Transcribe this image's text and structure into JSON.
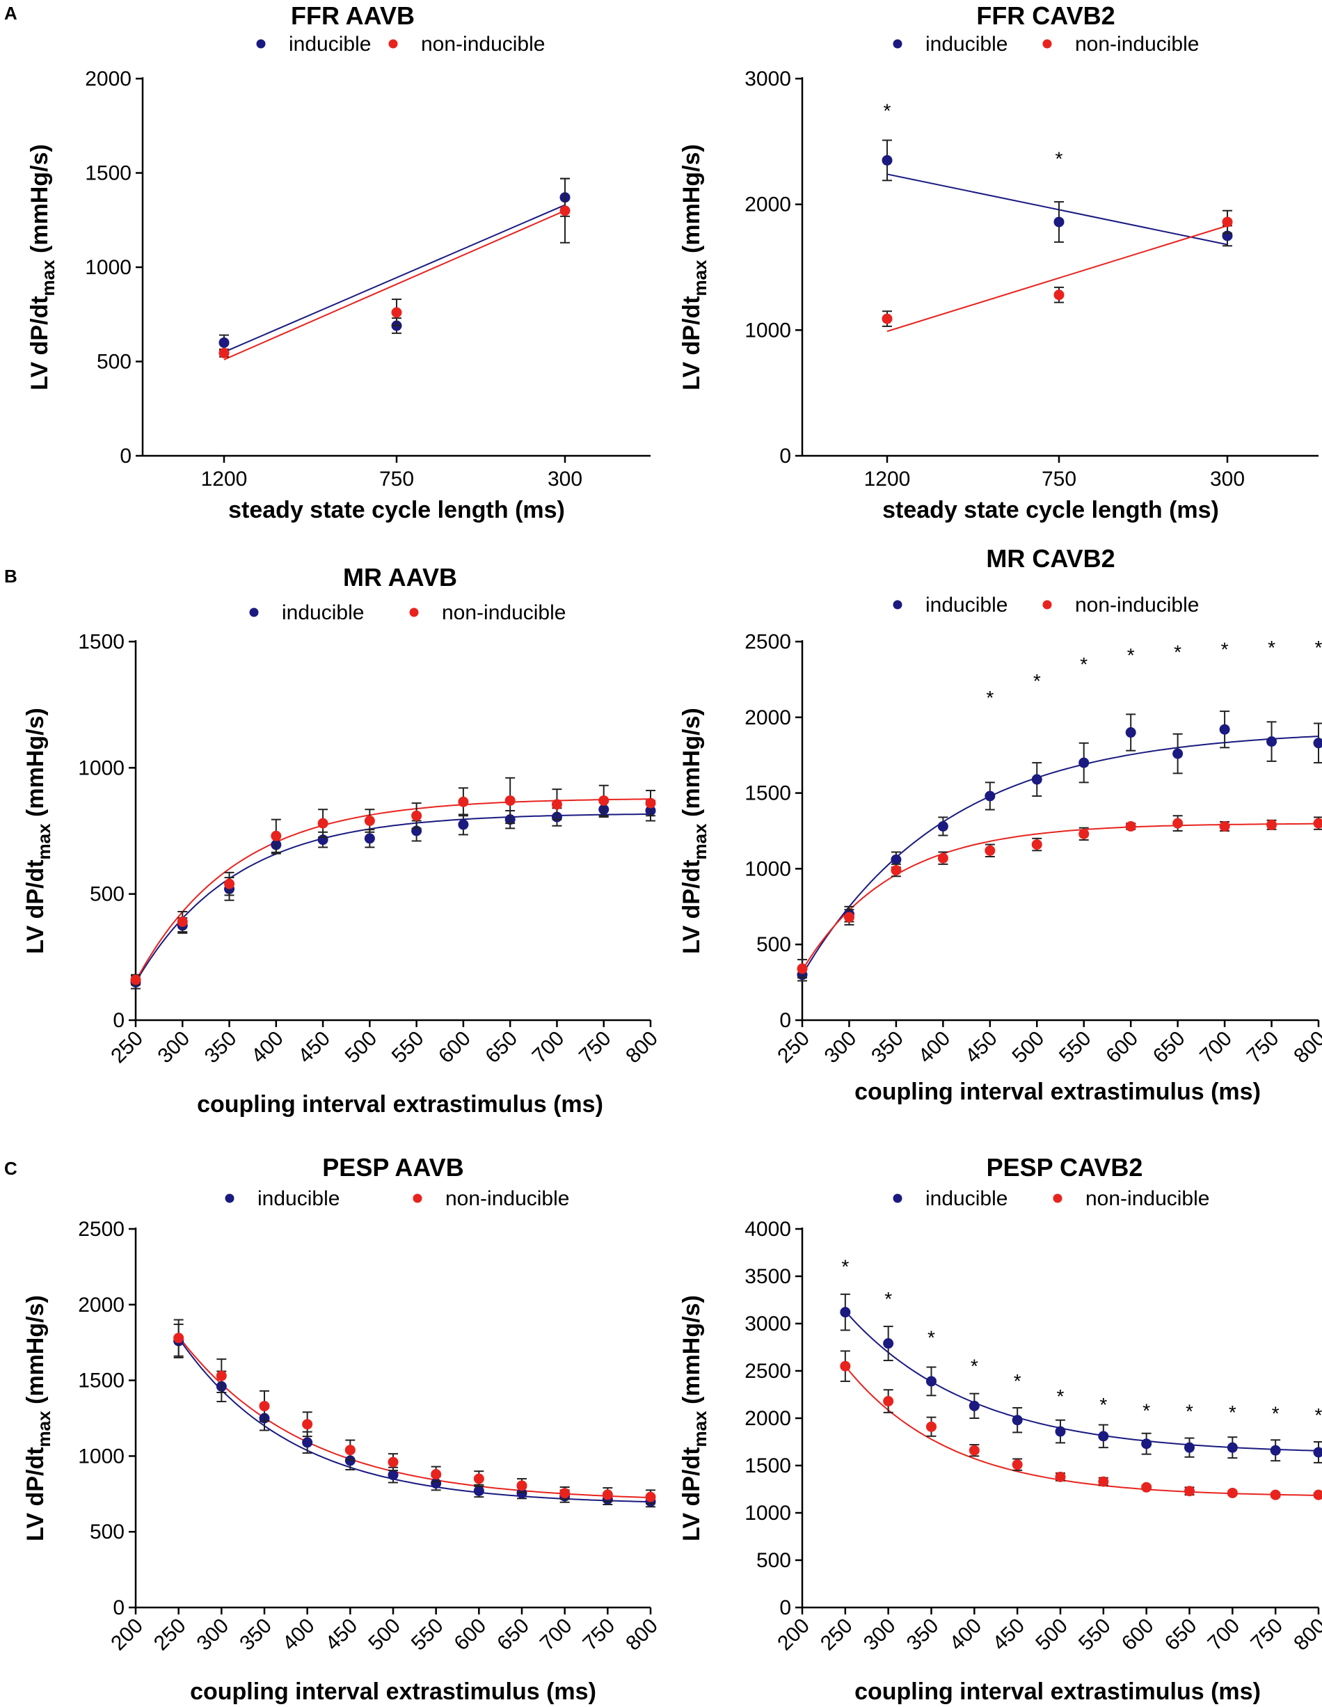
{
  "panel_letters": [
    "A",
    "B",
    "C"
  ],
  "chart_data": [
    {
      "type": "scatter",
      "panel": "A",
      "title": "FFR AAVB",
      "xlabel": "steady state cycle length (ms)",
      "ylabel_main": "LV dP/dt",
      "ylabel_sub": "max",
      "ylabel_unit": " (mmHg/s)",
      "x_kind": "categorical",
      "categories": [
        "1200",
        "750",
        "300"
      ],
      "ylim": [
        0,
        2000
      ],
      "yticks": [
        0,
        500,
        1000,
        1500,
        2000
      ],
      "fit": "linear",
      "legend": [
        "inducible",
        "non-inducible"
      ],
      "series": [
        {
          "name": "inducible",
          "color": "#1a1a80",
          "values": [
            600,
            690,
            1370
          ],
          "err": [
            40,
            40,
            100
          ],
          "fit_line": [
            550,
            1330
          ]
        },
        {
          "name": "non-inducible",
          "color": "#e8231e",
          "values": [
            545,
            760,
            1300
          ],
          "err": [
            20,
            70,
            170
          ],
          "fit_line": [
            510,
            1300
          ]
        }
      ],
      "stars": []
    },
    {
      "type": "scatter",
      "panel": "A",
      "title": "FFR CAVB2",
      "xlabel": "steady state cycle length (ms)",
      "ylabel_main": "LV dP/dt",
      "ylabel_sub": "max",
      "ylabel_unit": " (mmHg/s)",
      "x_kind": "categorical",
      "categories": [
        "1200",
        "750",
        "300"
      ],
      "ylim": [
        0,
        3000
      ],
      "yticks": [
        0,
        1000,
        2000,
        3000
      ],
      "fit": "linear",
      "legend": [
        "inducible",
        "non-inducible"
      ],
      "series": [
        {
          "name": "inducible",
          "color": "#1a1a80",
          "values": [
            2350,
            1860,
            1750
          ],
          "err": [
            160,
            160,
            80
          ],
          "fit_line": [
            2240,
            1680
          ]
        },
        {
          "name": "non-inducible",
          "color": "#e8231e",
          "values": [
            1090,
            1280,
            1860
          ],
          "err": [
            60,
            60,
            90
          ],
          "fit_line": [
            990,
            1830
          ]
        }
      ],
      "stars": [
        {
          "x": "1200",
          "y": 2780,
          "text": "*"
        },
        {
          "x": "750",
          "y": 2400,
          "text": "*"
        }
      ]
    },
    {
      "type": "scatter",
      "panel": "B",
      "title": "MR AAVB",
      "xlabel": "coupling interval extrastimulus (ms)",
      "ylabel_main": "LV dP/dt",
      "ylabel_sub": "max",
      "ylabel_unit": " (mmHg/s)",
      "x_kind": "numeric",
      "x": [
        250,
        300,
        350,
        400,
        450,
        500,
        550,
        600,
        650,
        700,
        750,
        800
      ],
      "xlim": [
        250,
        800
      ],
      "xticks": [
        250,
        300,
        350,
        400,
        450,
        500,
        550,
        600,
        650,
        700,
        750,
        800
      ],
      "ylim": [
        0,
        1500
      ],
      "yticks": [
        0,
        500,
        1000,
        1500
      ],
      "fit": "exp_rise",
      "legend": [
        "inducible",
        "non-inducible"
      ],
      "series": [
        {
          "name": "inducible",
          "color": "#1a1a80",
          "values": [
            150,
            375,
            520,
            695,
            715,
            720,
            750,
            775,
            795,
            805,
            835,
            830
          ],
          "err": [
            25,
            30,
            45,
            35,
            30,
            35,
            40,
            40,
            35,
            35,
            30,
            40
          ],
          "fit_params": {
            "ymax": 820,
            "y0": 150,
            "k": 0.0095
          }
        },
        {
          "name": "non-inducible",
          "color": "#e8231e",
          "values": [
            160,
            390,
            540,
            730,
            780,
            790,
            810,
            865,
            870,
            855,
            870,
            860
          ],
          "err": [
            20,
            40,
            45,
            65,
            55,
            45,
            50,
            55,
            90,
            60,
            60,
            50
          ],
          "fit_params": {
            "ymax": 880,
            "y0": 155,
            "k": 0.0095
          }
        }
      ],
      "stars": []
    },
    {
      "type": "scatter",
      "panel": "B",
      "title": "MR CAVB2",
      "xlabel": "coupling interval extrastimulus (ms)",
      "ylabel_main": "LV dP/dt",
      "ylabel_sub": "max",
      "ylabel_unit": " (mmHg/s)",
      "x_kind": "numeric",
      "x": [
        250,
        300,
        350,
        400,
        450,
        500,
        550,
        600,
        650,
        700,
        750,
        800
      ],
      "xlim": [
        250,
        800
      ],
      "xticks": [
        250,
        300,
        350,
        400,
        450,
        500,
        550,
        600,
        650,
        700,
        750,
        800
      ],
      "ylim": [
        0,
        2500
      ],
      "yticks": [
        0,
        500,
        1000,
        1500,
        2000,
        2500
      ],
      "fit": "exp_rise",
      "legend": [
        "inducible",
        "non-inducible"
      ],
      "series": [
        {
          "name": "inducible",
          "color": "#1a1a80",
          "values": [
            300,
            700,
            1060,
            1280,
            1480,
            1590,
            1700,
            1900,
            1760,
            1920,
            1840,
            1830
          ],
          "err": [
            40,
            50,
            50,
            60,
            90,
            110,
            130,
            120,
            130,
            120,
            130,
            130
          ],
          "fit_params": {
            "ymax": 1920,
            "y0": 300,
            "k": 0.0065
          }
        },
        {
          "name": "non-inducible",
          "color": "#e8231e",
          "values": [
            340,
            680,
            990,
            1070,
            1120,
            1160,
            1230,
            1280,
            1300,
            1280,
            1290,
            1300
          ],
          "err": [
            60,
            50,
            40,
            40,
            40,
            40,
            40,
            20,
            50,
            30,
            30,
            40
          ],
          "fit_params": {
            "ymax": 1300,
            "y0": 330,
            "k": 0.0105
          }
        }
      ],
      "stars": [
        {
          "x": 450,
          "y": 2160,
          "text": "*"
        },
        {
          "x": 500,
          "y": 2270,
          "text": "*"
        },
        {
          "x": 550,
          "y": 2380,
          "text": "*"
        },
        {
          "x": 600,
          "y": 2440,
          "text": "*"
        },
        {
          "x": 650,
          "y": 2460,
          "text": "*"
        },
        {
          "x": 700,
          "y": 2480,
          "text": "*"
        },
        {
          "x": 750,
          "y": 2490,
          "text": "*"
        },
        {
          "x": 800,
          "y": 2490,
          "text": "*"
        }
      ]
    },
    {
      "type": "scatter",
      "panel": "C",
      "title": "PESP AAVB",
      "xlabel": "coupling interval extrastimulus (ms)",
      "ylabel_main": "LV dP/dt",
      "ylabel_sub": "max",
      "ylabel_unit": " (mmHg/s)",
      "x_kind": "numeric",
      "x": [
        250,
        300,
        350,
        400,
        450,
        500,
        550,
        600,
        650,
        700,
        750,
        800
      ],
      "xlim": [
        200,
        800
      ],
      "xticks": [
        200,
        250,
        300,
        350,
        400,
        450,
        500,
        550,
        600,
        650,
        700,
        750,
        800
      ],
      "ylim": [
        0,
        2500
      ],
      "yticks": [
        0,
        500,
        1000,
        1500,
        2000,
        2500
      ],
      "fit": "exp_decay",
      "legend": [
        "inducible",
        "non-inducible"
      ],
      "series": [
        {
          "name": "inducible",
          "color": "#1a1a80",
          "values": [
            1760,
            1460,
            1250,
            1090,
            970,
            875,
            820,
            770,
            755,
            735,
            715,
            700
          ],
          "err": [
            110,
            100,
            80,
            70,
            60,
            50,
            45,
            40,
            35,
            40,
            35,
            35
          ],
          "fit_params": {
            "plateau": 680,
            "y0": 1780,
            "k": 0.0075
          }
        },
        {
          "name": "non-inducible",
          "color": "#e8231e",
          "values": [
            1780,
            1530,
            1330,
            1210,
            1040,
            960,
            880,
            850,
            805,
            755,
            745,
            730
          ],
          "err": [
            120,
            110,
            100,
            80,
            65,
            55,
            50,
            50,
            45,
            40,
            45,
            45
          ],
          "fit_params": {
            "plateau": 700,
            "y0": 1790,
            "k": 0.0068
          }
        }
      ],
      "stars": []
    },
    {
      "type": "scatter",
      "panel": "C",
      "title": "PESP CAVB2",
      "xlabel": "coupling interval extrastimulus (ms)",
      "ylabel_main": "LV dP/dt",
      "ylabel_sub": "max",
      "ylabel_unit": " (mmHg/s)",
      "x_kind": "numeric",
      "x": [
        250,
        300,
        350,
        400,
        450,
        500,
        550,
        600,
        650,
        700,
        750,
        800
      ],
      "xlim": [
        200,
        800
      ],
      "xticks": [
        200,
        250,
        300,
        350,
        400,
        450,
        500,
        550,
        600,
        650,
        700,
        750,
        800
      ],
      "ylim": [
        0,
        4000
      ],
      "yticks": [
        0,
        500,
        1000,
        1500,
        2000,
        2500,
        3000,
        3500,
        4000
      ],
      "fit": "exp_decay",
      "legend": [
        "inducible",
        "non-inducible"
      ],
      "series": [
        {
          "name": "inducible",
          "color": "#1a1a80",
          "values": [
            3120,
            2790,
            2390,
            2130,
            1980,
            1860,
            1810,
            1730,
            1690,
            1690,
            1660,
            1640
          ],
          "err": [
            190,
            180,
            150,
            130,
            130,
            120,
            120,
            110,
            100,
            110,
            110,
            110
          ],
          "fit_params": {
            "plateau": 1620,
            "y0": 3130,
            "k": 0.0068
          }
        },
        {
          "name": "non-inducible",
          "color": "#e8231e",
          "values": [
            2550,
            2180,
            1910,
            1660,
            1510,
            1380,
            1330,
            1270,
            1230,
            1210,
            1190,
            1190
          ],
          "err": [
            160,
            120,
            100,
            60,
            60,
            40,
            40,
            20,
            40,
            20,
            20,
            20
          ],
          "fit_params": {
            "plateau": 1170,
            "y0": 2550,
            "k": 0.0082
          }
        }
      ],
      "stars": [
        {
          "x": 250,
          "y": 3650,
          "text": "*"
        },
        {
          "x": 300,
          "y": 3310,
          "text": "*"
        },
        {
          "x": 350,
          "y": 2900,
          "text": "*"
        },
        {
          "x": 400,
          "y": 2600,
          "text": "*"
        },
        {
          "x": 450,
          "y": 2440,
          "text": "*"
        },
        {
          "x": 500,
          "y": 2280,
          "text": "*"
        },
        {
          "x": 550,
          "y": 2190,
          "text": "*"
        },
        {
          "x": 600,
          "y": 2130,
          "text": "*"
        },
        {
          "x": 650,
          "y": 2120,
          "text": "*"
        },
        {
          "x": 700,
          "y": 2110,
          "text": "*"
        },
        {
          "x": 750,
          "y": 2100,
          "text": "*"
        },
        {
          "x": 800,
          "y": 2080,
          "text": "*"
        }
      ]
    }
  ]
}
